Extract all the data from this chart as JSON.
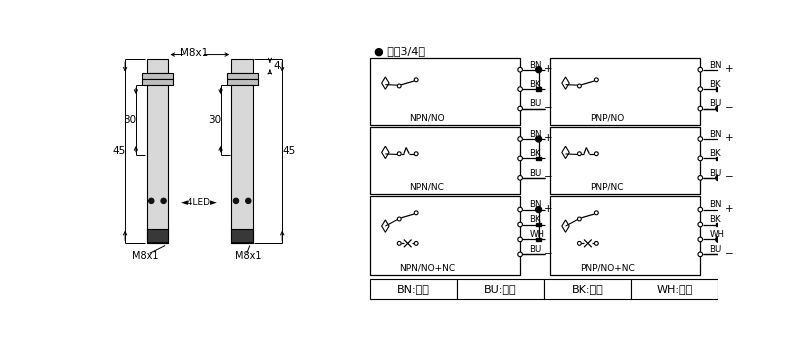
{
  "bg_color": "#ffffff",
  "title_text": "● 直浑3/4线",
  "legend_items": [
    "BN:棕色",
    "BU:兰色",
    "BK:黑色",
    "WH:白色"
  ],
  "circuit_labels_left": [
    "NPN/NO",
    "NPN/NC",
    "NPN/NO+NC"
  ],
  "circuit_labels_right": [
    "PNP/NO",
    "PNP/NC",
    "PNP/NO+NC"
  ],
  "dim_M8x1": "M8x1",
  "dim_30": "30",
  "dim_45": "45",
  "dim_4": "4",
  "dim_led": "4LED",
  "dim_m8x1_bot": "M8x1",
  "wire_labels_3": [
    "BN",
    "BK",
    "BU"
  ],
  "wire_labels_4": [
    "BN",
    "BK",
    "WH",
    "BU"
  ]
}
